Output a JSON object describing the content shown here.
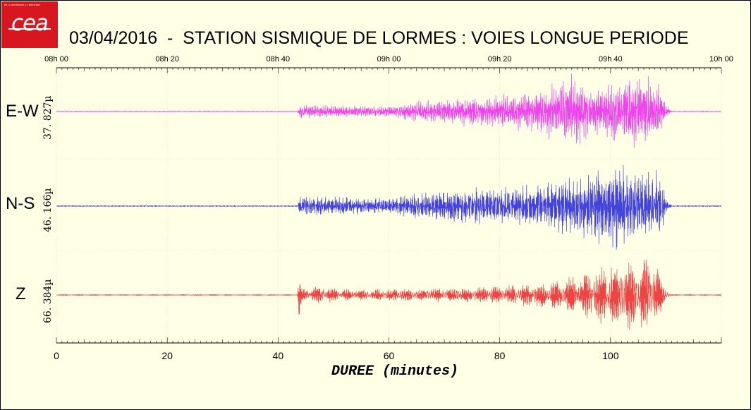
{
  "logo": {
    "text": "cea",
    "tagline": "DE LA RECHERCHE A L'INDUSTRIE",
    "color": "#d7161f"
  },
  "title": "03/04/2016  -  STATION SISMIQUE DE LORMES : VOIES LONGUE PERIODE",
  "chart_data": {
    "type": "line",
    "title": "03/04/2016  -  STATION SISMIQUE DE LORMES : VOIES LONGUE PERIODE",
    "xlabel": "DUREE (minutes)",
    "ylabel": "",
    "xlim": [
      0,
      120
    ],
    "x_ticks": [
      0,
      20,
      40,
      60,
      80,
      100
    ],
    "top_time_ticks": [
      "08h 00",
      "08h 20",
      "08h 40",
      "09h 00",
      "09h 20",
      "09h 40",
      "10h 00"
    ],
    "grid": true,
    "series": [
      {
        "name": "E-W",
        "scale": "37. 827µ",
        "color": "#ee44ee",
        "envelope": [
          [
            0,
            0.01
          ],
          [
            43.5,
            0.01
          ],
          [
            44,
            0.18
          ],
          [
            50,
            0.14
          ],
          [
            60,
            0.12
          ],
          [
            65,
            0.25
          ],
          [
            70,
            0.28
          ],
          [
            75,
            0.35
          ],
          [
            80,
            0.4
          ],
          [
            85,
            0.45
          ],
          [
            90,
            0.65
          ],
          [
            93,
            0.9
          ],
          [
            94,
            1.0
          ],
          [
            96,
            0.55
          ],
          [
            100,
            0.7
          ],
          [
            104,
            0.9
          ],
          [
            107,
            0.9
          ],
          [
            109,
            0.6
          ],
          [
            110,
            0.15
          ],
          [
            111,
            0.01
          ],
          [
            120,
            0.01
          ]
        ]
      },
      {
        "name": "N-S",
        "scale": "46. 166µ",
        "color": "#4444dd",
        "envelope": [
          [
            0,
            0.01
          ],
          [
            43.5,
            0.01
          ],
          [
            44,
            0.22
          ],
          [
            50,
            0.2
          ],
          [
            60,
            0.18
          ],
          [
            65,
            0.3
          ],
          [
            70,
            0.35
          ],
          [
            75,
            0.4
          ],
          [
            85,
            0.45
          ],
          [
            90,
            0.55
          ],
          [
            95,
            0.7
          ],
          [
            100,
            0.95
          ],
          [
            101,
            1.0
          ],
          [
            104,
            0.75
          ],
          [
            107,
            0.8
          ],
          [
            109,
            0.7
          ],
          [
            110,
            0.2
          ],
          [
            111,
            0.01
          ],
          [
            120,
            0.01
          ]
        ]
      },
      {
        "name": "Z",
        "scale": "66. 384µ",
        "color": "#ee4444",
        "envelope": [
          [
            0,
            0.01
          ],
          [
            43.5,
            0.01
          ],
          [
            43.7,
            0.75
          ],
          [
            44.2,
            0.15
          ],
          [
            47,
            0.2
          ],
          [
            55,
            0.12
          ],
          [
            62,
            0.15
          ],
          [
            70,
            0.18
          ],
          [
            80,
            0.2
          ],
          [
            90,
            0.35
          ],
          [
            95,
            0.5
          ],
          [
            100,
            0.7
          ],
          [
            104,
            0.85
          ],
          [
            106,
            1.0
          ],
          [
            108,
            0.8
          ],
          [
            110,
            0.15
          ],
          [
            111,
            0.01
          ],
          [
            120,
            0.01
          ]
        ]
      }
    ]
  }
}
